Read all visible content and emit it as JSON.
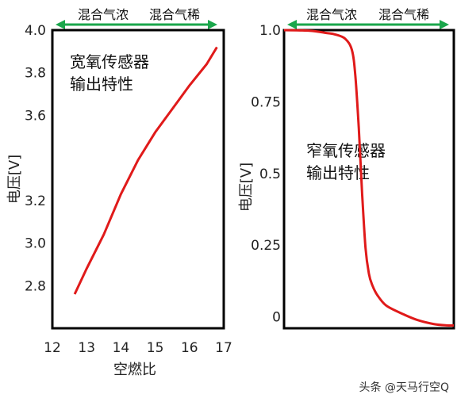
{
  "chart_data": [
    {
      "type": "line",
      "title": "",
      "annotation_lines": [
        "宽氧传感器",
        "输出特性"
      ],
      "xlabel": "空燃比",
      "ylabel": "电压[V]",
      "xlim": [
        12,
        17
      ],
      "ylim": [
        2.6,
        4.0
      ],
      "xticks": [
        12,
        13,
        14,
        15,
        16,
        17
      ],
      "yticks": [
        {
          "value": 2.8,
          "label": "2.8"
        },
        {
          "value": 3.0,
          "label": "3.0"
        },
        {
          "value": 3.2,
          "label": "3.2"
        },
        {
          "value": 3.6,
          "label": "3.6"
        },
        {
          "value": 3.8,
          "label": "3.8"
        },
        {
          "value": 4.0,
          "label": "4.0"
        }
      ],
      "mixture_labels": {
        "rich": "混合气浓",
        "lean": "混合气稀"
      },
      "series": [
        {
          "color": "#e01a1a",
          "x": [
            12.65,
            13.0,
            13.5,
            14.0,
            14.5,
            15.0,
            15.5,
            16.0,
            16.5,
            16.8
          ],
          "y": [
            2.76,
            2.88,
            3.04,
            3.23,
            3.39,
            3.52,
            3.63,
            3.74,
            3.84,
            3.92
          ]
        }
      ],
      "arrow_color": "#1aa64b"
    },
    {
      "type": "line",
      "title": "",
      "annotation_lines": [
        "窄氧传感器",
        "输出特性"
      ],
      "xlabel": "",
      "ylabel": "电压[V]",
      "xlim": [
        0,
        1
      ],
      "ylim": [
        -0.04,
        1.0
      ],
      "yticks": [
        {
          "value": 1.0,
          "label": "1.0"
        },
        {
          "value": 0.75,
          "label": "0.75"
        },
        {
          "value": 0.5,
          "label": "0.5"
        },
        {
          "value": 0.25,
          "label": "0.25"
        },
        {
          "value": 0.0,
          "label": "0"
        }
      ],
      "mixture_labels": {
        "rich": "混合气浓",
        "lean": "混合气稀"
      },
      "series": [
        {
          "color": "#e01a1a",
          "x": [
            0.0,
            0.15,
            0.25,
            0.3,
            0.36,
            0.4,
            0.42,
            0.44,
            0.46,
            0.48,
            0.5,
            0.52,
            0.55,
            0.6,
            0.68,
            0.78,
            0.88,
            0.96,
            1.0
          ],
          "y": [
            1.0,
            0.998,
            0.99,
            0.985,
            0.97,
            0.93,
            0.84,
            0.66,
            0.43,
            0.24,
            0.15,
            0.11,
            0.075,
            0.04,
            0.015,
            -0.01,
            -0.025,
            -0.03,
            -0.03
          ]
        }
      ],
      "arrow_color": "#1aa64b"
    }
  ],
  "watermark": "头条 @天马行空Q"
}
